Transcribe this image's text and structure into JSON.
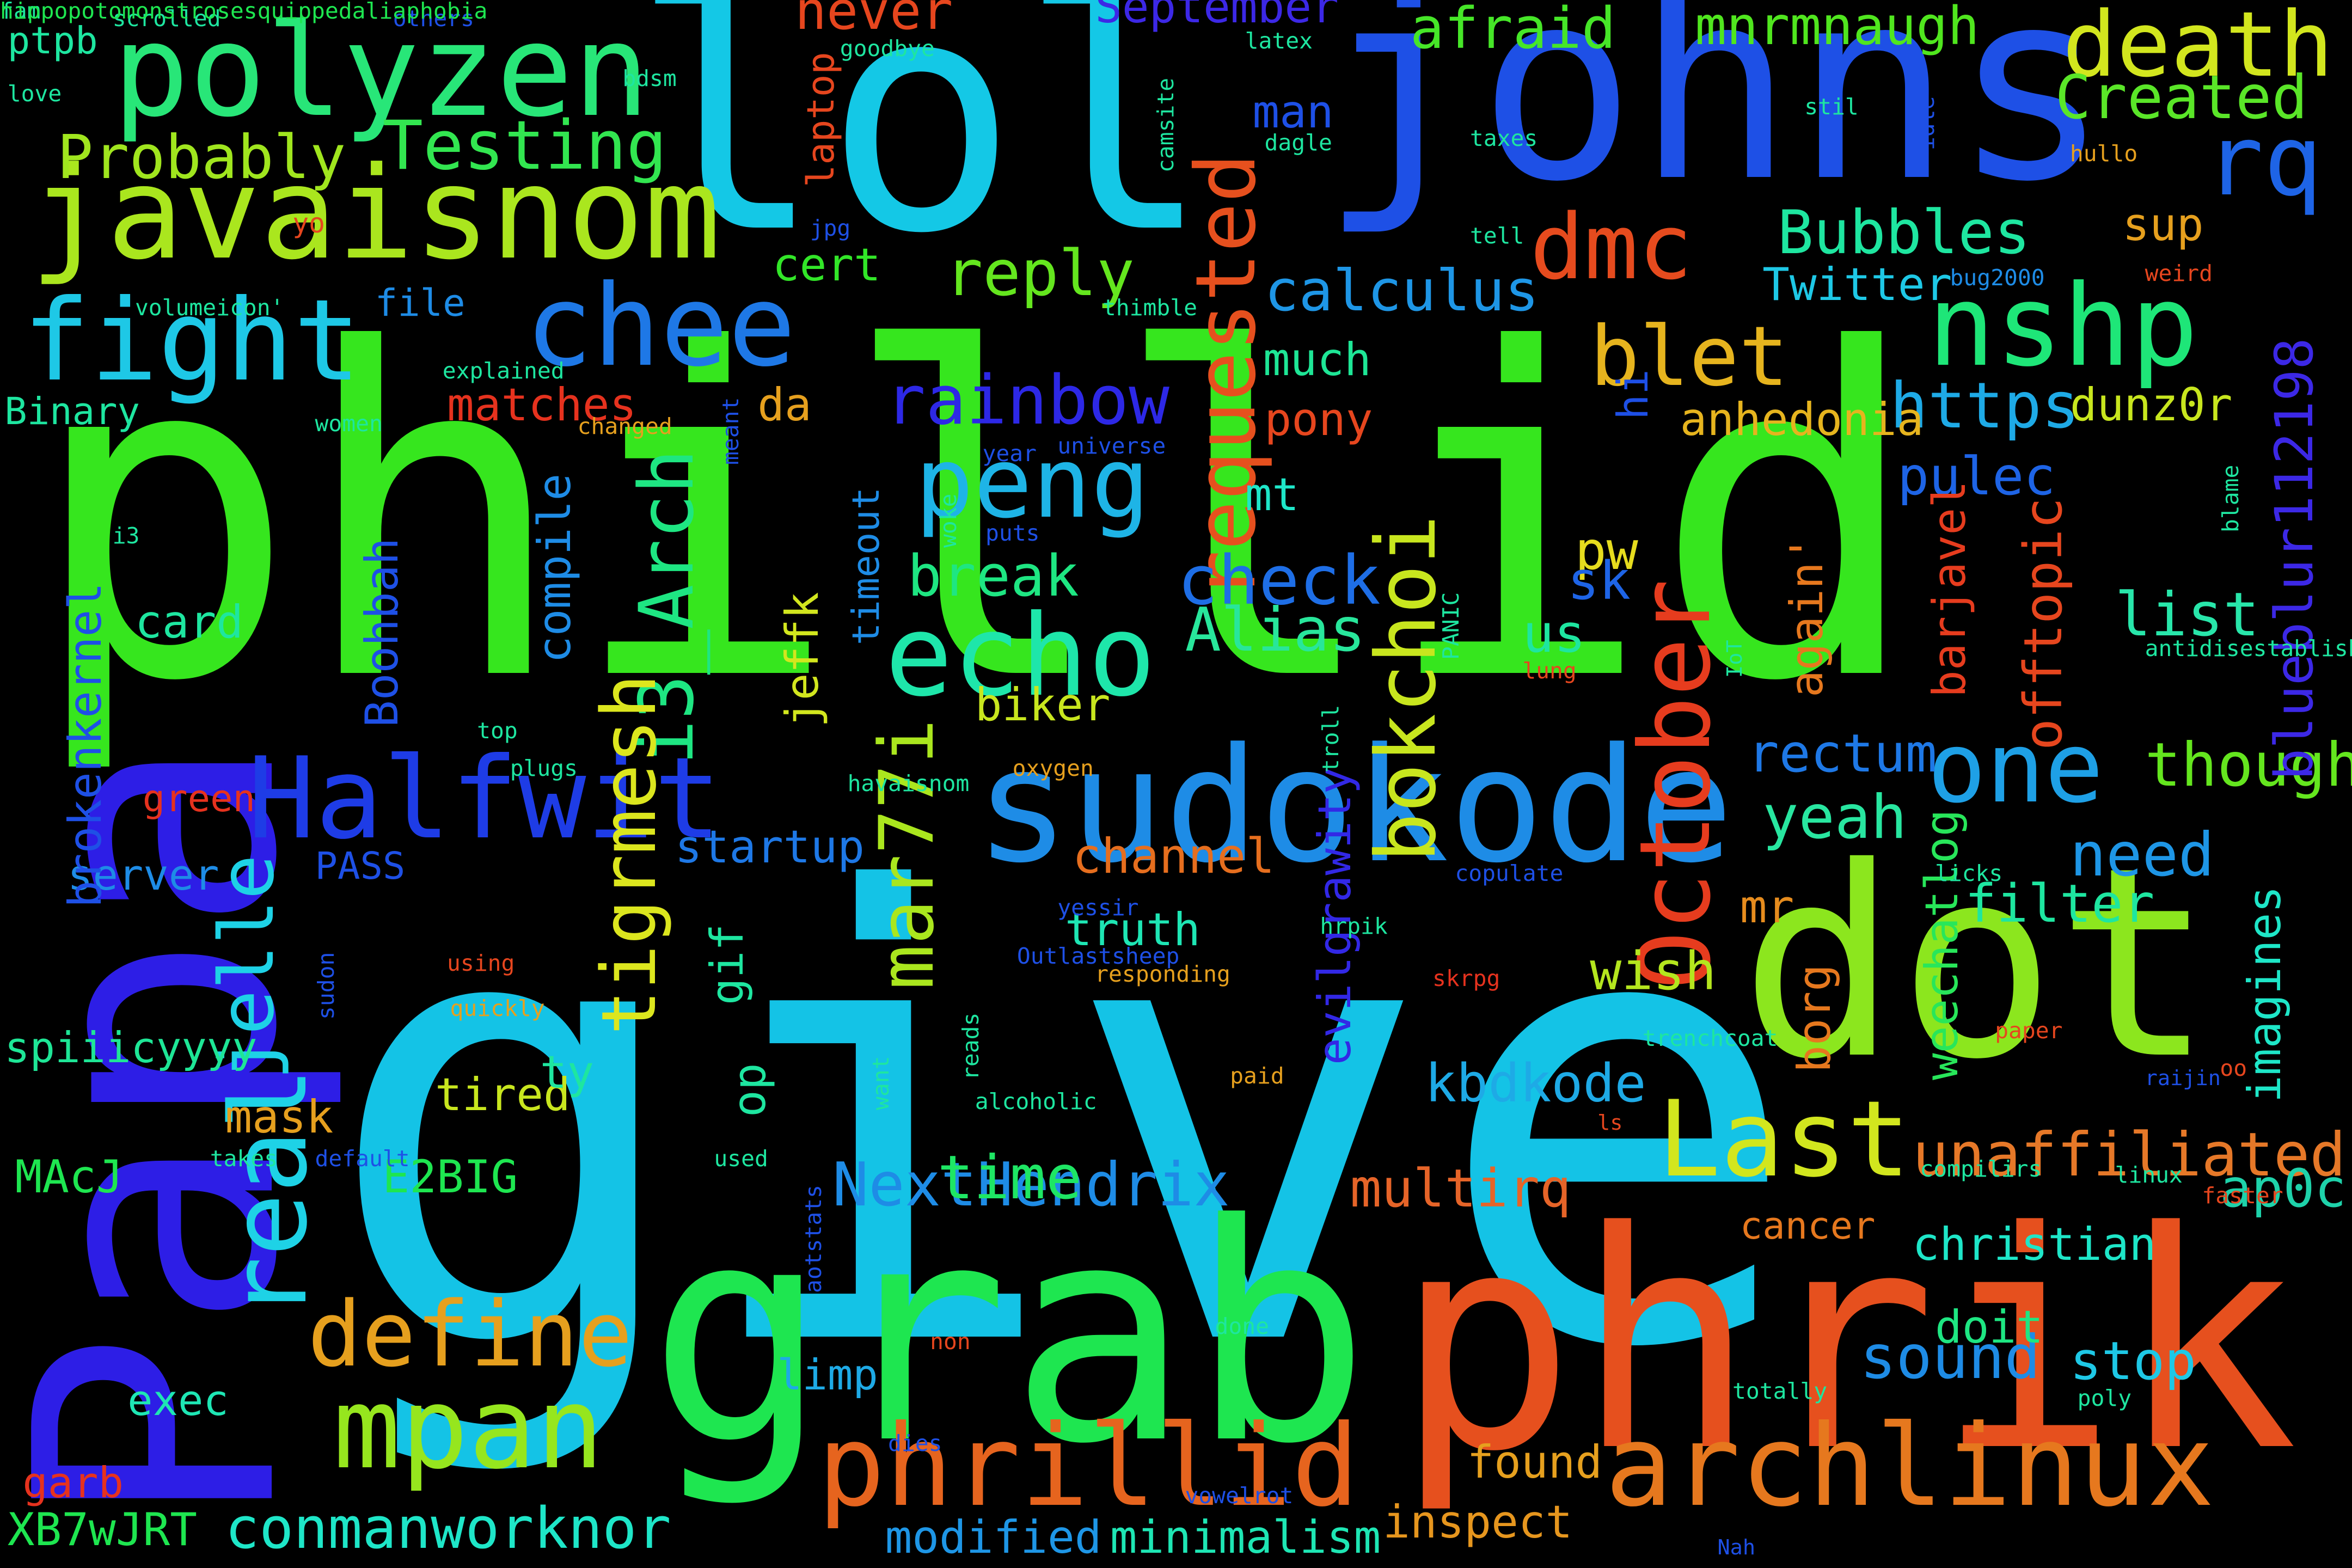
{
  "words": [
    {
      "text": "phillid",
      "color": "#36e61e"
    },
    {
      "text": "give",
      "color": "#14c3e6"
    },
    {
      "text": "grab",
      "color": "#1ee650"
    },
    {
      "text": "phrik",
      "color": "#e6501e"
    },
    {
      "text": "lol",
      "color": "#14c8e6"
    },
    {
      "text": "johns",
      "color": "#1e50e6"
    },
    {
      "text": "Papa",
      "color": "#2d1ee6"
    },
    {
      "text": "dot",
      "color": "#8ce61e"
    },
    {
      "text": "sudokode",
      "color": "#1e8ce6"
    },
    {
      "text": "archlinux",
      "color": "#e6781e"
    },
    {
      "text": "phrillid",
      "color": "#e6641e"
    },
    {
      "text": "javaisnom",
      "color": "#aae61e"
    },
    {
      "text": "polyzen",
      "color": "#28e678"
    },
    {
      "text": "fight",
      "color": "#1ec8e6"
    },
    {
      "text": "chee",
      "color": "#1e78e6"
    },
    {
      "text": "nshp",
      "color": "#1ee678"
    },
    {
      "text": "Halfwit",
      "color": "#1e3ce6"
    },
    {
      "text": "October",
      "color": "#e63c1e"
    },
    {
      "text": "echo",
      "color": "#1ee6aa"
    },
    {
      "text": "mpan",
      "color": "#96e61e"
    },
    {
      "text": "real",
      "color": "#1ed2e6"
    },
    {
      "text": "Last",
      "color": "#d2e61e"
    },
    {
      "text": "one",
      "color": "#1ea0e6"
    },
    {
      "text": "define",
      "color": "#e6a01e"
    },
    {
      "text": "death",
      "color": "#d2e61e"
    },
    {
      "text": "dmc",
      "color": "#e64b1e"
    },
    {
      "text": "rq",
      "color": "#1e64e6"
    },
    {
      "text": "peng",
      "color": "#1eb4e6"
    },
    {
      "text": "requested",
      "color": "#e6501e"
    },
    {
      "text": "blet",
      "color": "#e6b41e"
    },
    {
      "text": "bokchoi",
      "color": "#c8e61e"
    },
    {
      "text": "i3_Arch",
      "color": "#1ee682"
    },
    {
      "text": "jelle",
      "color": "#1ed2e6"
    },
    {
      "text": "mar77i",
      "color": "#aae61e"
    },
    {
      "text": "tigrmesh",
      "color": "#dce61e"
    },
    {
      "text": "Testing",
      "color": "#32e650"
    },
    {
      "text": "Probably",
      "color": "#a0e61e"
    },
    {
      "text": "Bubbles",
      "color": "#1ee6a0"
    },
    {
      "text": "Created",
      "color": "#5ae628"
    },
    {
      "text": "mnrmnaugh",
      "color": "#50e61e"
    },
    {
      "text": "afraid",
      "color": "#46e628"
    },
    {
      "text": "never",
      "color": "#e6461e"
    },
    {
      "text": "September",
      "color": "#3c28e6"
    },
    {
      "text": "rainbow",
      "color": "#2d28e6"
    },
    {
      "text": "reply",
      "color": "#64e61e"
    },
    {
      "text": "cert",
      "color": "#32e628"
    },
    {
      "text": "calculus",
      "color": "#1e96e6"
    },
    {
      "text": "https",
      "color": "#1eaae6"
    },
    {
      "text": "check",
      "color": "#1e6ee6"
    },
    {
      "text": "Alias",
      "color": "#28e69b"
    },
    {
      "text": "break",
      "color": "#1ee682"
    },
    {
      "text": "conmanworknor",
      "color": "#1ee6c8"
    },
    {
      "text": "NextHendrix",
      "color": "#1e8ce6"
    },
    {
      "text": "unaffiliated",
      "color": "#e67828"
    },
    {
      "text": "time",
      "color": "#1ee664"
    },
    {
      "text": "kbdkode",
      "color": "#1eaae6"
    },
    {
      "text": "evilgrawity",
      "color": "#3228e6"
    },
    {
      "text": "multirq",
      "color": "#e66428"
    },
    {
      "text": "inspect",
      "color": "#e6961e"
    },
    {
      "text": "minimalism",
      "color": "#1ee6b4"
    },
    {
      "text": "modified",
      "color": "#1e96e6"
    },
    {
      "text": "sound",
      "color": "#1e8ce6"
    },
    {
      "text": "christian",
      "color": "#1ee6c8"
    },
    {
      "text": "ap0c",
      "color": "#1ed2aa"
    },
    {
      "text": "stop",
      "color": "#1ec8e6"
    },
    {
      "text": "filter",
      "color": "#1ee6a0"
    },
    {
      "text": "need",
      "color": "#1e96e6"
    },
    {
      "text": "though",
      "color": "#64e61e"
    },
    {
      "text": "yeah",
      "color": "#28e6a0"
    },
    {
      "text": "rectum",
      "color": "#1e78e6"
    },
    {
      "text": "wish",
      "color": "#b4e61e"
    },
    {
      "text": "truth",
      "color": "#1ee6b4"
    },
    {
      "text": "channel",
      "color": "#e66e1e"
    },
    {
      "text": "startup",
      "color": "#1e78e6"
    },
    {
      "text": "tired",
      "color": "#c8e61e"
    },
    {
      "text": "mask",
      "color": "#e6a01e"
    },
    {
      "text": "biker",
      "color": "#c8e61e"
    },
    {
      "text": "blueblur112198",
      "color": "#3c28e6"
    },
    {
      "text": "imagines",
      "color": "#1ee6c8"
    },
    {
      "text": "offtopic",
      "color": "#e6461e"
    },
    {
      "text": "list",
      "color": "#28e6aa"
    },
    {
      "text": "pulec",
      "color": "#1e64e6"
    },
    {
      "text": "dunz0r",
      "color": "#c8e61e"
    },
    {
      "text": "anhedonia",
      "color": "#e6b41e"
    },
    {
      "text": "pony",
      "color": "#e6461e"
    },
    {
      "text": "mt",
      "color": "#1ee6c8"
    },
    {
      "text": "pw",
      "color": "#e6dc1e"
    },
    {
      "text": "sk",
      "color": "#1e64e6"
    },
    {
      "text": "us",
      "color": "#1ee6a0"
    },
    {
      "text": "da",
      "color": "#e6a01e"
    },
    {
      "text": "man",
      "color": "#1e50e6"
    },
    {
      "text": "much",
      "color": "#1ee696"
    },
    {
      "text": "sup",
      "color": "#e6a01e"
    },
    {
      "text": "Twitter",
      "color": "#1ec8e6"
    },
    {
      "text": "again'",
      "color": "#e6781e"
    },
    {
      "text": "barjavel",
      "color": "#e63c1e"
    },
    {
      "text": "weechatlog",
      "color": "#28e65a"
    },
    {
      "text": "borg",
      "color": "#e6781e"
    },
    {
      "text": "mr",
      "color": "#e68c1e"
    },
    {
      "text": "cancer",
      "color": "#e6781e"
    },
    {
      "text": "doit",
      "color": "#1ee682"
    },
    {
      "text": "found",
      "color": "#e6a01e"
    },
    {
      "text": "limp",
      "color": "#1eaae6"
    },
    {
      "text": "exec",
      "color": "#1ee6b4"
    },
    {
      "text": "E2BIG",
      "color": "#1ee650"
    },
    {
      "text": "MAcJ",
      "color": "#1ee650"
    },
    {
      "text": "XB7wJRT",
      "color": "#1ee650"
    },
    {
      "text": "garb",
      "color": "#e6321e"
    },
    {
      "text": "spiiicyyyy",
      "color": "#1ee696"
    },
    {
      "text": "server",
      "color": "#1e8ce6"
    },
    {
      "text": "brokenkernel",
      "color": "#1e50e6"
    },
    {
      "text": "Boohbah",
      "color": "#1e50e6"
    },
    {
      "text": "card",
      "color": "#1ee6a0"
    },
    {
      "text": "compile",
      "color": "#1e8ce6"
    },
    {
      "text": "jeffk",
      "color": "#d2e61e"
    },
    {
      "text": "timeout",
      "color": "#1e8ce6"
    },
    {
      "text": "PASS",
      "color": "#1e50e6"
    },
    {
      "text": "op",
      "color": "#1ee6a0"
    },
    {
      "text": "gif",
      "color": "#1ee6a0"
    },
    {
      "text": "ty",
      "color": "#1ee6a0"
    },
    {
      "text": "matches",
      "color": "#e6321e"
    },
    {
      "text": "file",
      "color": "#1e8ce6"
    },
    {
      "text": "Binary",
      "color": "#1ee6a0"
    },
    {
      "text": "green",
      "color": "#e6321e"
    },
    {
      "text": "laptop",
      "color": "#e6461e"
    },
    {
      "text": "hi",
      "color": "#1e50e6"
    },
    {
      "text": "ptpb",
      "color": "#1ee6a0"
    },
    {
      "text": "yo",
      "color": "#e6461e"
    },
    {
      "text": "scrolled",
      "color": "#1ee6a0"
    },
    {
      "text": "others",
      "color": "#1e50e6"
    },
    {
      "text": "love",
      "color": "#1ee6a0"
    },
    {
      "text": "goodbye",
      "color": "#1ee6a0"
    },
    {
      "text": "latex",
      "color": "#1ee6a0"
    },
    {
      "text": "bdsm",
      "color": "#1ee6a0"
    },
    {
      "text": "camsite",
      "color": "#1ee6a0"
    },
    {
      "text": "dagle",
      "color": "#1ee6a0"
    },
    {
      "text": "taxes",
      "color": "#1ee6a0"
    },
    {
      "text": "stil",
      "color": "#1ee6a0"
    },
    {
      "text": "idle",
      "color": "#1e50e6"
    },
    {
      "text": "hullo",
      "color": "#e6a01e"
    },
    {
      "text": "tell",
      "color": "#1ee6a0"
    },
    {
      "text": "jpg",
      "color": "#1e50e6"
    },
    {
      "text": "bug2000",
      "color": "#1e8ce6"
    },
    {
      "text": "weird",
      "color": "#e6461e"
    },
    {
      "text": "volumeicon'",
      "color": "#1ee6a0"
    },
    {
      "text": "thimble",
      "color": "#1ee6a0"
    },
    {
      "text": "explained",
      "color": "#1ee6a0"
    },
    {
      "text": "women",
      "color": "#1ee6a0"
    },
    {
      "text": "changed",
      "color": "#e6a01e"
    },
    {
      "text": "meant",
      "color": "#1e50e6"
    },
    {
      "text": "year",
      "color": "#1e50e6"
    },
    {
      "text": "universe",
      "color": "#1e50e6"
    },
    {
      "text": "i3",
      "color": "#1ee6a0"
    },
    {
      "text": "woke",
      "color": "#1ee6a0"
    },
    {
      "text": "puts",
      "color": "#1e50e6"
    },
    {
      "text": "IoT",
      "color": "#1ee6a0"
    },
    {
      "text": "blame",
      "color": "#1ee6a0"
    },
    {
      "text": "antidisestablishmentarianism",
      "color": "#1ee6a0"
    },
    {
      "text": "lung",
      "color": "#e6461e"
    },
    {
      "text": "PANIC",
      "color": "#1ee6a0"
    },
    {
      "text": "top",
      "color": "#1ee6a0"
    },
    {
      "text": "plugs",
      "color": "#1ee6a0"
    },
    {
      "text": "oxygen",
      "color": "#e6a01e"
    },
    {
      "text": "troll",
      "color": "#1ee6a0"
    },
    {
      "text": "havaisnom",
      "color": "#1ee6a0"
    },
    {
      "text": "copulate",
      "color": "#1e50e6"
    },
    {
      "text": "licks",
      "color": "#1ee6a0"
    },
    {
      "text": "Outlastsheep",
      "color": "#1e50e6"
    },
    {
      "text": "yessir",
      "color": "#1e50e6"
    },
    {
      "text": "hrpik",
      "color": "#1ee6a0"
    },
    {
      "text": "sudon",
      "color": "#1e50e6"
    },
    {
      "text": "using",
      "color": "#e6461e"
    },
    {
      "text": "responding",
      "color": "#e6a01e"
    },
    {
      "text": "skrpg",
      "color": "#e6321e"
    },
    {
      "text": "quickly",
      "color": "#e6a01e"
    },
    {
      "text": "want",
      "color": "#1ee6a0"
    },
    {
      "text": "reads",
      "color": "#1ee6a0"
    },
    {
      "text": "trenchcoat",
      "color": "#1ee6a0"
    },
    {
      "text": "paper",
      "color": "#e6461e"
    },
    {
      "text": "raijin",
      "color": "#1e50e6"
    },
    {
      "text": "oo",
      "color": "#e6461e"
    },
    {
      "text": "paid",
      "color": "#e6a01e"
    },
    {
      "text": "alcoholic",
      "color": "#1ee6a0"
    },
    {
      "text": "ls",
      "color": "#e6461e"
    },
    {
      "text": "takes",
      "color": "#1ee6a0"
    },
    {
      "text": "default",
      "color": "#1e50e6"
    },
    {
      "text": "used",
      "color": "#1ee6a0"
    },
    {
      "text": "aotstats",
      "color": "#1e50e6"
    },
    {
      "text": "compilirs",
      "color": "#1ee6a0"
    },
    {
      "text": "linux",
      "color": "#1ee6a0"
    },
    {
      "text": "faster",
      "color": "#e6461e"
    },
    {
      "text": "non",
      "color": "#e6461e"
    },
    {
      "text": "done",
      "color": "#1ee6a0"
    },
    {
      "text": "totally",
      "color": "#1ee6a0"
    },
    {
      "text": "poly",
      "color": "#1ee6a0"
    },
    {
      "text": "dies",
      "color": "#1e50e6"
    },
    {
      "text": "vowelrot",
      "color": "#1e50e6"
    },
    {
      "text": "Nah",
      "color": "#1e50e6"
    },
    {
      "text": "fam",
      "color": "#1ee6a0"
    },
    {
      "text": "hippopotomonstrosesquippedaliaphobia",
      "color": "#1ee650"
    }
  ]
}
